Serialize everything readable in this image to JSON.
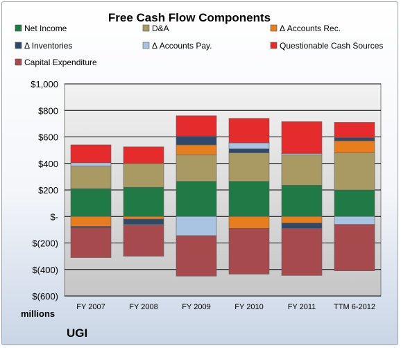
{
  "chart_data": {
    "type": "bar",
    "stacked": true,
    "title": "Free Cash Flow Components",
    "units_label": "millions",
    "company": "UGI",
    "categories": [
      "FY 2007",
      "FY 2008",
      "FY 2009",
      "FY 2010",
      "FY 2011",
      "TTM 6-2012"
    ],
    "ylim": [
      -600,
      1000
    ],
    "yticks": [
      -600,
      -400,
      -200,
      0,
      200,
      400,
      600,
      800,
      1000
    ],
    "ytick_labels": [
      "$(600)",
      "$(400)",
      "$(200)",
      "$-",
      "$200",
      "$400",
      "$600",
      "$800",
      "$1,000"
    ],
    "grid": true,
    "legend_position": "top",
    "series": [
      {
        "name": "Net Income",
        "color": "#1f7a45",
        "values": [
          210,
          220,
          265,
          265,
          235,
          200
        ]
      },
      {
        "name": "D&A",
        "color": "#a89a62",
        "values": [
          170,
          180,
          200,
          215,
          230,
          280
        ]
      },
      {
        "name": "Δ Accounts Rec.",
        "color": "#e87d1e",
        "values": [
          -75,
          -20,
          75,
          -90,
          -50,
          90
        ]
      },
      {
        "name": "Δ Inventories",
        "color": "#2e4a6b",
        "values": [
          -10,
          -40,
          65,
          30,
          -40,
          25
        ]
      },
      {
        "name": "Δ Accounts Pay.",
        "color": "#a9c3e2",
        "values": [
          25,
          -5,
          -145,
          45,
          10,
          -60
        ]
      },
      {
        "name": "Questionable Cash Sources",
        "color": "#e52b2b",
        "values": [
          135,
          125,
          155,
          185,
          240,
          115
        ]
      },
      {
        "name": "Capital Expenditure",
        "color": "#a64a4e",
        "values": [
          -225,
          -235,
          -305,
          -345,
          -355,
          -350
        ]
      }
    ]
  }
}
